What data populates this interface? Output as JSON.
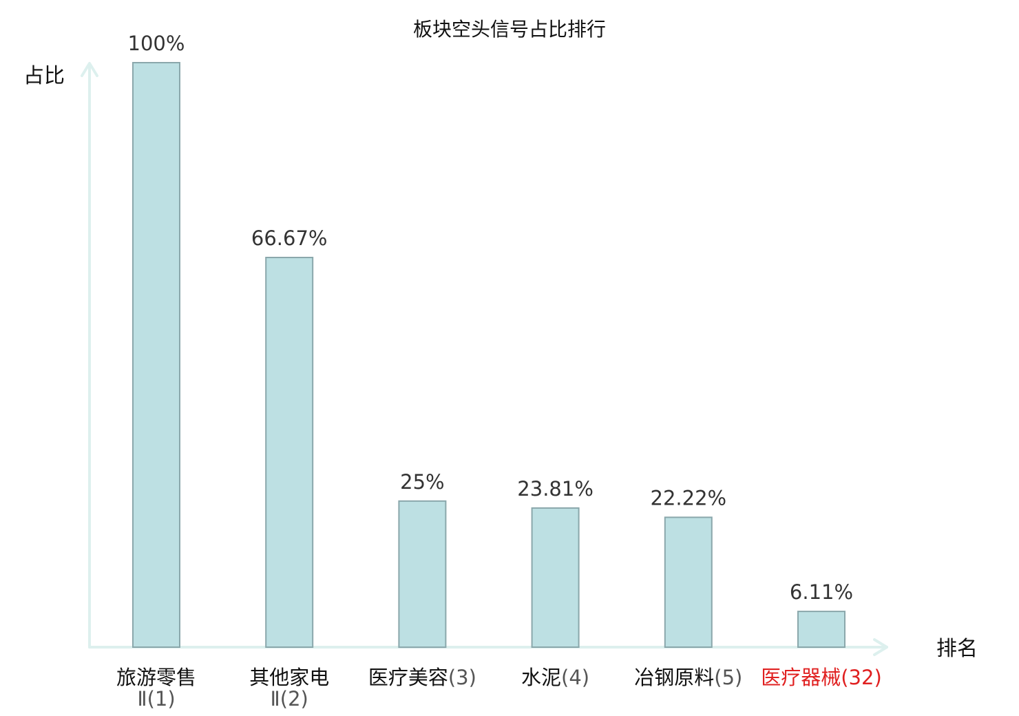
{
  "chart_data": {
    "type": "bar",
    "title": "板块空头信号占比排行",
    "ylabel": "占比",
    "xlabel": "排名",
    "ylim": [
      0,
      100
    ],
    "grid": false,
    "categories": [
      {
        "name": "旅游零售",
        "sub": "Ⅱ(1)"
      },
      {
        "name": "其他家电",
        "sub": "Ⅱ(2)"
      },
      {
        "name": "医疗美容",
        "rank": "(3)"
      },
      {
        "name": "水泥",
        "rank": "(4)"
      },
      {
        "name": "冶钢原料",
        "rank": "(5)"
      },
      {
        "name": "医疗器械",
        "rank": "(32)",
        "highlight": true
      }
    ],
    "values": [
      100,
      66.67,
      25,
      23.81,
      22.22,
      6.11
    ],
    "value_labels": [
      "100%",
      "66.67%",
      "25%",
      "23.81%",
      "22.22%",
      "6.11%"
    ],
    "colors": {
      "bar_fill": "#bde0e3",
      "bar_stroke": "#8aa7ab",
      "axis": "#ddf0ee",
      "highlight": "#e02020",
      "rank_text": "#555555",
      "label_text": "#111111"
    }
  }
}
